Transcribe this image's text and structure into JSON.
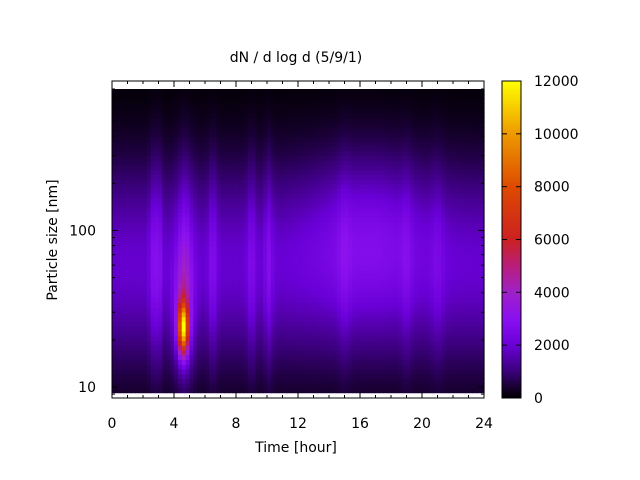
{
  "chart_data": {
    "type": "heatmap",
    "title": "dN / d log d (5/9/1)",
    "xlabel": "Time [hour]",
    "ylabel": "Particle size [nm]",
    "x_range": [
      0,
      24
    ],
    "x_ticks": [
      0,
      4,
      8,
      12,
      16,
      20,
      24
    ],
    "x_tick_labels": [
      "0",
      "4",
      "8",
      "12",
      "16",
      "20",
      "24"
    ],
    "y_scale": "log",
    "y_range": [
      8.5,
      900
    ],
    "y_tick_labels": [
      {
        "value": 10,
        "label": "10"
      },
      {
        "value": 100,
        "label": "100"
      }
    ],
    "colorbar": {
      "range": [
        0,
        12000
      ],
      "ticks": [
        0,
        2000,
        4000,
        6000,
        8000,
        10000,
        12000
      ],
      "tick_labels": [
        "0",
        "2000",
        "4000",
        "6000",
        "8000",
        "10000",
        "12000"
      ],
      "colormap": "black-purple-red-orange-yellow"
    },
    "colormap_stops": [
      {
        "value": 0,
        "color": "#000000"
      },
      {
        "value": 1000,
        "color": "#3a007a"
      },
      {
        "value": 2000,
        "color": "#6a00d8"
      },
      {
        "value": 3000,
        "color": "#8a10f0"
      },
      {
        "value": 4000,
        "color": "#a020c8"
      },
      {
        "value": 5000,
        "color": "#b81e7a"
      },
      {
        "value": 6000,
        "color": "#cc2020"
      },
      {
        "value": 8000,
        "color": "#de4a00"
      },
      {
        "value": 10000,
        "color": "#ee9a00"
      },
      {
        "value": 12000,
        "color": "#ffff00"
      }
    ],
    "field": {
      "baseline": {
        "center_size_nm": 60,
        "log_width": 0.45,
        "amplitude": 1900
      },
      "time_bands": [
        {
          "time_h": 2.6,
          "width_h": 0.15,
          "amplitude": 900
        },
        {
          "time_h": 3.0,
          "width_h": 0.15,
          "amplitude": 1200
        },
        {
          "time_h": 4.7,
          "width_h": 0.35,
          "amplitude": 1300
        },
        {
          "time_h": 6.5,
          "width_h": 0.2,
          "amplitude": 900
        },
        {
          "time_h": 9.0,
          "width_h": 0.2,
          "amplitude": 800
        },
        {
          "time_h": 10.1,
          "width_h": 0.2,
          "amplitude": 900
        },
        {
          "time_h": 15.0,
          "width_h": 0.3,
          "amplitude": 500
        },
        {
          "time_h": 19.0,
          "width_h": 0.25,
          "amplitude": 500
        },
        {
          "time_h": 21.0,
          "width_h": 0.3,
          "amplitude": 500
        }
      ],
      "broad_hump": {
        "time_h": 16.5,
        "width_h": 2.5,
        "center_size_nm": 100,
        "log_width": 0.35,
        "amplitude": 1000
      },
      "nucleation_peak": {
        "time_h": 4.6,
        "width_h": 0.22,
        "center_size_nm": 24,
        "log_width": 0.11,
        "amplitude": 8500
      },
      "peak_halo": {
        "time_h": 4.6,
        "width_h": 0.45,
        "center_size_nm": 30,
        "log_width": 0.25,
        "amplitude": 1600
      }
    }
  }
}
